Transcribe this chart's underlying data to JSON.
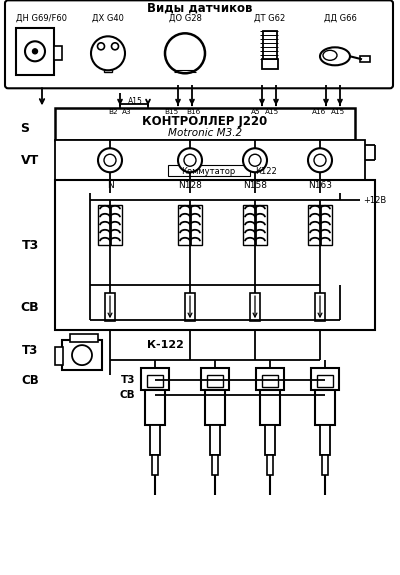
{
  "title": "Виды датчиков",
  "bg_color": "#ffffff",
  "sensor_labels": [
    "ДН G69/F60",
    "ДХ G40",
    "ДО G28",
    "ДТ G62",
    "ДД G66"
  ],
  "controller_line1": "КОНТРОЛЛЕР J220",
  "controller_line2": "Motronic M3.2",
  "label_S": "S",
  "label_VT": "VT",
  "label_T3": "T3",
  "label_CB": "СВ",
  "coil_labels": [
    "N",
    "N128",
    "N158",
    "N163"
  ],
  "k122_label": "К-122",
  "kommutator_label": "Коммутатор",
  "k122_box_label": "К122",
  "voltage_label": "+12В",
  "wire_labels": [
    "A15",
    "B2",
    "A3",
    "B15",
    "B16",
    "A5",
    "A15",
    "A16",
    "A15"
  ]
}
